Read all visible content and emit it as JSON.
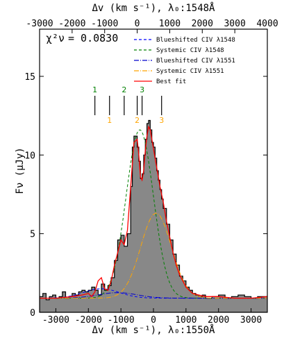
{
  "chart_data": {
    "type": "line",
    "x_bottom_label": "Δv (km s⁻¹),  λ₀:1550Å",
    "x_top_label": "Δv (km s⁻¹),  λ₀:1548Å",
    "ylabel": "Fν (μJy)",
    "xlim": [
      -3500,
      3500
    ],
    "ylim": [
      0,
      18
    ],
    "top_axis_offset": -500,
    "bottom_ticks": [
      -3000,
      -2000,
      -1000,
      0,
      1000,
      2000,
      3000
    ],
    "top_ticks": [
      -3000,
      -2000,
      -1000,
      0,
      1000,
      2000,
      3000,
      4000
    ],
    "y_ticks": [
      0,
      5,
      10,
      15
    ],
    "chi2_label": "χ²ν",
    "chi2_value": "= 0.0830",
    "legend": [
      {
        "name": "Blueshifted CIV λ1548",
        "color": "#0000ff",
        "dash": "4,3"
      },
      {
        "name": "Systemic CIV λ1548",
        "color": "#008000",
        "dash": "4,3"
      },
      {
        "name": "Blueshifted CIV λ1551",
        "color": "#0000cc",
        "dash": "7,2,1,2"
      },
      {
        "name": "Systemic CIV λ1551",
        "color": "#ffa500",
        "dash": "7,2,1,2"
      },
      {
        "name": "Best fit",
        "color": "#ff0000",
        "dash": ""
      }
    ],
    "markers_green": [
      {
        "label": "1",
        "x": -1800
      },
      {
        "label": "2",
        "x": -900
      },
      {
        "label": "3",
        "x": -350
      }
    ],
    "markers_orange": [
      {
        "label": "1",
        "x": -1350
      },
      {
        "label": "2",
        "x": -500
      },
      {
        "label": "3",
        "x": 250
      }
    ],
    "marker_lines_x": [
      -1800,
      -1350,
      -900,
      -500,
      -350,
      250
    ],
    "spectrum": {
      "x": [
        -3500,
        -3400,
        -3300,
        -3200,
        -3100,
        -3000,
        -2900,
        -2800,
        -2700,
        -2600,
        -2500,
        -2400,
        -2300,
        -2200,
        -2100,
        -2000,
        -1900,
        -1800,
        -1700,
        -1600,
        -1500,
        -1400,
        -1300,
        -1200,
        -1100,
        -1000,
        -900,
        -800,
        -700,
        -650,
        -600,
        -550,
        -500,
        -450,
        -400,
        -350,
        -300,
        -250,
        -200,
        -150,
        -100,
        -50,
        0,
        50,
        100,
        150,
        200,
        250,
        300,
        400,
        500,
        600,
        700,
        800,
        900,
        1000,
        1100,
        1200,
        1300,
        1400,
        1500,
        1600,
        1800,
        2000,
        2200,
        2400,
        2600,
        2800,
        3000,
        3200,
        3400,
        3500
      ],
      "y": [
        1.0,
        1.2,
        0.8,
        1.0,
        1.1,
        0.9,
        1.0,
        1.3,
        0.9,
        1.0,
        1.2,
        1.1,
        1.3,
        1.4,
        1.3,
        1.4,
        1.6,
        1.4,
        1.1,
        1.8,
        1.4,
        1.7,
        2.2,
        3.3,
        4.6,
        4.9,
        4.2,
        5.0,
        8.0,
        10.5,
        11.2,
        11.2,
        10.5,
        9.6,
        8.5,
        8.8,
        10.0,
        11.0,
        12.0,
        12.2,
        11.6,
        10.8,
        10.5,
        9.8,
        9.0,
        8.4,
        7.8,
        7.2,
        6.6,
        5.6,
        4.6,
        3.7,
        3.0,
        2.3,
        2.0,
        1.6,
        1.4,
        1.2,
        1.1,
        1.0,
        1.1,
        0.9,
        1.0,
        1.1,
        0.9,
        1.0,
        1.1,
        1.0,
        0.9,
        1.0,
        1.0,
        1.0
      ]
    },
    "components": {
      "baseline": 0.9,
      "blueshifted_1548": {
        "center": -1600,
        "sigma": 550,
        "amp": 0.6
      },
      "systemic_1548": {
        "center": -420,
        "sigma": 420,
        "amp": 10.7
      },
      "blueshifted_1551": {
        "center": -1100,
        "sigma": 600,
        "amp": 0.35
      },
      "systemic_1551": {
        "center": 80,
        "sigma": 470,
        "amp": 5.4
      }
    },
    "best_fit": {
      "x": [
        -3500,
        -3000,
        -2500,
        -2200,
        -2000,
        -1900,
        -1800,
        -1700,
        -1600,
        -1500,
        -1400,
        -1300,
        -1200,
        -1100,
        -1000,
        -900,
        -800,
        -700,
        -600,
        -500,
        -450,
        -400,
        -350,
        -300,
        -250,
        -200,
        -150,
        -100,
        -50,
        0,
        100,
        200,
        300,
        400,
        500,
        600,
        700,
        800,
        900,
        1000,
        1100,
        1200,
        1400,
        1600,
        2000,
        2500,
        3000,
        3500
      ],
      "y": [
        0.9,
        0.9,
        1.0,
        1.1,
        1.2,
        1.0,
        1.3,
        2.0,
        2.2,
        1.5,
        1.4,
        2.0,
        3.0,
        3.8,
        4.6,
        4.3,
        5.2,
        8.0,
        10.8,
        11.0,
        10.0,
        8.6,
        8.4,
        9.0,
        10.3,
        11.2,
        11.8,
        11.6,
        11.0,
        10.4,
        9.2,
        8.0,
        7.0,
        5.8,
        4.8,
        3.8,
        3.0,
        2.4,
        2.0,
        1.6,
        1.4,
        1.2,
        1.1,
        1.0,
        1.0,
        0.9,
        0.9,
        1.0
      ]
    }
  }
}
